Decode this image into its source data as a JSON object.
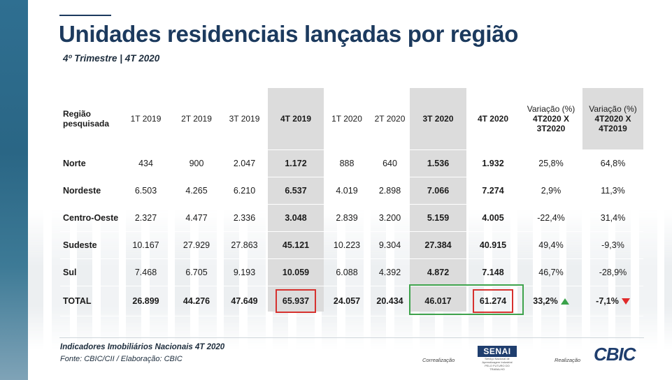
{
  "header": {
    "title": "Unidades residenciais lançadas por região",
    "subtitle": "4º Trimestre | 4T 2020"
  },
  "table": {
    "columns": [
      "Região pesquisada",
      "1T 2019",
      "2T 2019",
      "3T 2019",
      "4T 2019",
      "1T 2020",
      "2T 2020",
      "3T 2020",
      "4T 2020",
      "Variação (%) 4T2020 X 3T2020",
      "Variação (%) 4T2020 X 4T2019"
    ],
    "variation_label": "Variação (%)",
    "variation_1_detail": "4T2020 X 3T2020",
    "variation_2_detail": "4T2020 X 4T2019",
    "rows": [
      {
        "region": "Norte",
        "values": [
          "434",
          "900",
          "2.047",
          "1.172",
          "888",
          "640",
          "1.536",
          "1.932",
          "25,8%",
          "64,8%"
        ]
      },
      {
        "region": "Nordeste",
        "values": [
          "6.503",
          "4.265",
          "6.210",
          "6.537",
          "4.019",
          "2.898",
          "7.066",
          "7.274",
          "2,9%",
          "11,3%"
        ]
      },
      {
        "region": "Centro-Oeste",
        "values": [
          "2.327",
          "4.477",
          "2.336",
          "3.048",
          "2.839",
          "3.200",
          "5.159",
          "4.005",
          "-22,4%",
          "31,4%"
        ]
      },
      {
        "region": "Sudeste",
        "values": [
          "10.167",
          "27.929",
          "27.863",
          "45.121",
          "10.223",
          "9.304",
          "27.384",
          "40.915",
          "49,4%",
          "-9,3%"
        ]
      },
      {
        "region": "Sul",
        "values": [
          "7.468",
          "6.705",
          "9.193",
          "10.059",
          "6.088",
          "4.392",
          "4.872",
          "7.148",
          "46,7%",
          "-28,9%"
        ]
      }
    ],
    "total": {
      "region": "TOTAL",
      "values": [
        "26.899",
        "44.276",
        "47.649",
        "65.937",
        "24.057",
        "20.434",
        "46.017",
        "61.274",
        "33,2%",
        "-7,1%"
      ]
    }
  },
  "footer": {
    "source_title": "Indicadores Imobiliários Nacionais 4T 2020",
    "source_credit": "Fonte: CBIC/CII / Elaboração: CBIC",
    "correalizacao": "Correalização",
    "senai": "SENAI",
    "senai_sub1": "Serviço Nacional de Aprendizagem Industrial",
    "senai_sub2": "PELO FUTURO DO TRABALHO",
    "realizacao": "Realização",
    "cbic": "CBIC"
  },
  "colors": {
    "title": "#1c3a5e",
    "highlight_red": "#d6312e",
    "highlight_green": "#3fa34d",
    "shade": "#dcdcdc"
  }
}
